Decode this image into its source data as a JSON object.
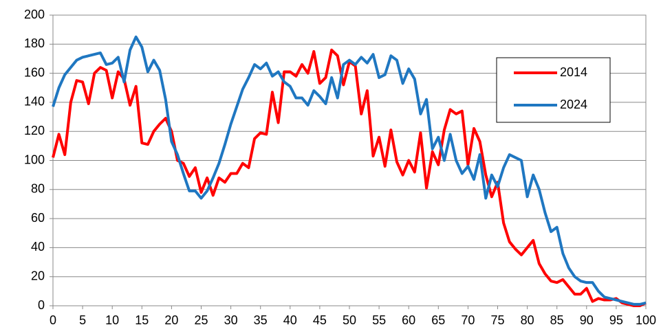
{
  "chart_data": {
    "type": "line",
    "x": [
      0,
      1,
      2,
      3,
      4,
      5,
      6,
      7,
      8,
      9,
      10,
      11,
      12,
      13,
      14,
      15,
      16,
      17,
      18,
      19,
      20,
      21,
      22,
      23,
      24,
      25,
      26,
      27,
      28,
      29,
      30,
      31,
      32,
      33,
      34,
      35,
      36,
      37,
      38,
      39,
      40,
      41,
      42,
      43,
      44,
      45,
      46,
      47,
      48,
      49,
      50,
      51,
      52,
      53,
      54,
      55,
      56,
      57,
      58,
      59,
      60,
      61,
      62,
      63,
      64,
      65,
      66,
      67,
      68,
      69,
      70,
      71,
      72,
      73,
      74,
      75,
      76,
      77,
      78,
      79,
      80,
      81,
      82,
      83,
      84,
      85,
      86,
      87,
      88,
      89,
      90,
      91,
      92,
      93,
      94,
      95,
      96,
      97,
      98,
      99,
      100
    ],
    "series": [
      {
        "name": "2014",
        "color": "#ff0000",
        "values": [
          102,
          118,
          104,
          140,
          155,
          154,
          139,
          160,
          164,
          162,
          143,
          161,
          156,
          138,
          151,
          112,
          111,
          120,
          125,
          129,
          120,
          100,
          98,
          89,
          95,
          78,
          88,
          76,
          88,
          85,
          91,
          91,
          98,
          95,
          115,
          119,
          118,
          147,
          126,
          161,
          161,
          158,
          166,
          160,
          175,
          153,
          157,
          176,
          172,
          152,
          168,
          165,
          132,
          148,
          103,
          116,
          96,
          121,
          99,
          90,
          100,
          92,
          119,
          81,
          106,
          97,
          121,
          135,
          132,
          134,
          97,
          122,
          113,
          90,
          75,
          85,
          57,
          44,
          39,
          35,
          40,
          45,
          29,
          22,
          17,
          16,
          18,
          13,
          8,
          8,
          12,
          3,
          5,
          4,
          4,
          5,
          2,
          1,
          0,
          0,
          2
        ]
      },
      {
        "name": "2024",
        "color": "#1f77c1",
        "values": [
          137,
          150,
          159,
          164,
          169,
          171,
          172,
          173,
          174,
          166,
          167,
          171,
          154,
          176,
          185,
          178,
          161,
          169,
          162,
          142,
          113,
          104,
          91,
          79,
          79,
          74,
          79,
          88,
          98,
          111,
          125,
          137,
          149,
          157,
          166,
          163,
          167,
          158,
          161,
          154,
          151,
          143,
          143,
          138,
          148,
          144,
          139,
          157,
          143,
          166,
          169,
          166,
          171,
          167,
          173,
          157,
          159,
          172,
          169,
          153,
          163,
          156,
          132,
          142,
          108,
          116,
          100,
          118,
          100,
          91,
          96,
          87,
          104,
          74,
          90,
          82,
          95,
          104,
          102,
          100,
          75,
          90,
          80,
          64,
          51,
          54,
          36,
          26,
          20,
          17,
          16,
          16,
          10,
          6,
          5,
          4,
          3,
          2,
          1,
          1,
          2
        ]
      }
    ],
    "xlim": [
      0,
      100
    ],
    "xticks": [
      0,
      5,
      10,
      15,
      20,
      25,
      30,
      35,
      40,
      45,
      50,
      55,
      60,
      65,
      70,
      75,
      80,
      85,
      90,
      95,
      100
    ],
    "ylim": [
      0,
      200
    ],
    "yticks": [
      0,
      20,
      40,
      60,
      80,
      100,
      120,
      140,
      160,
      180,
      200
    ],
    "grid": true,
    "legend": "upper right"
  }
}
